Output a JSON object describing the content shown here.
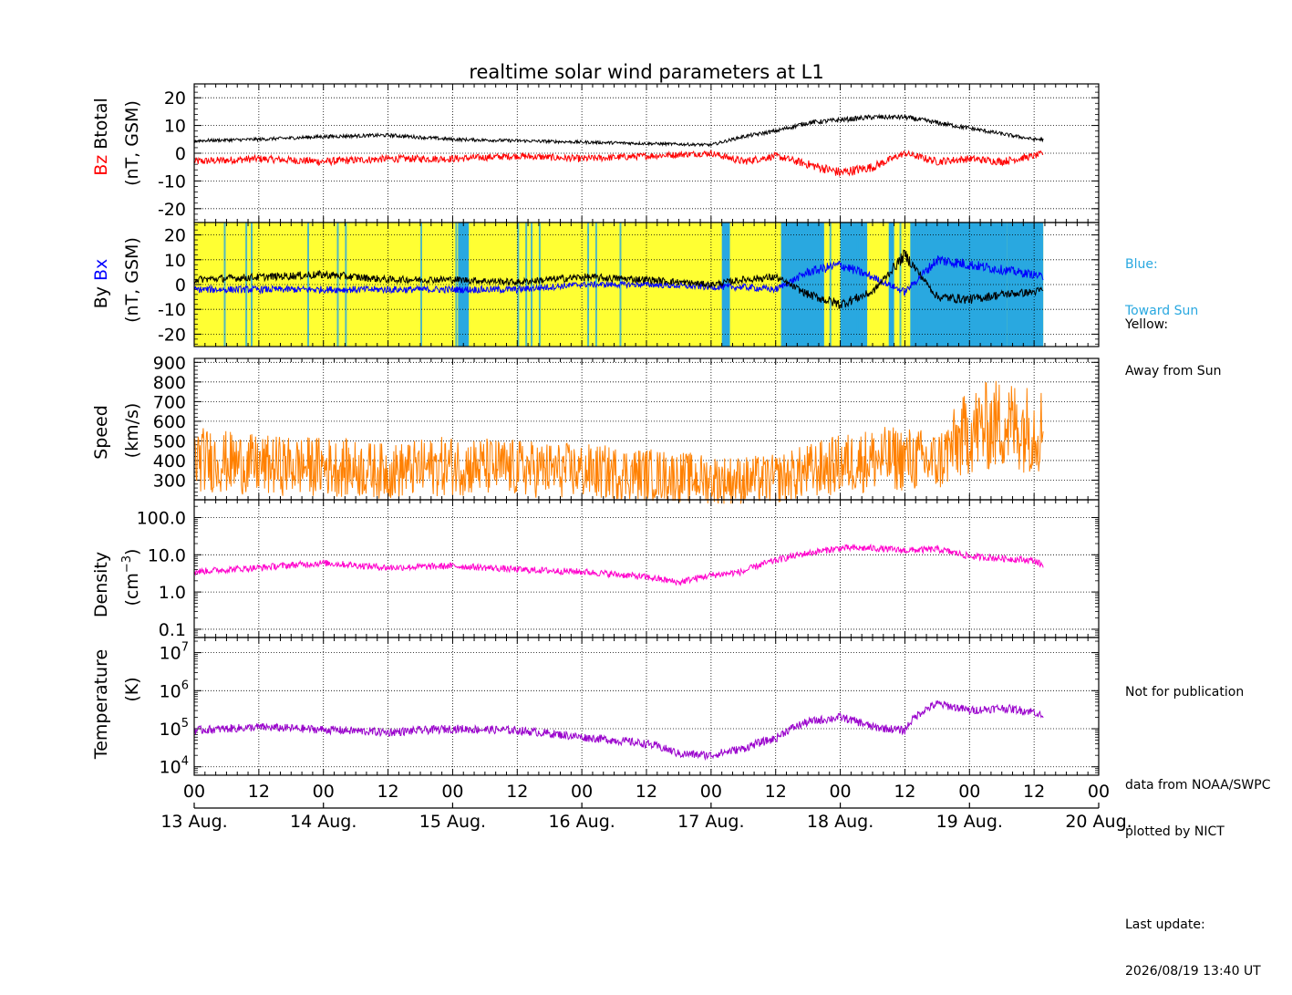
{
  "title": "realtime solar wind parameters at L1",
  "colors": {
    "bz": "#ff0000",
    "btotal": "#000000",
    "bx": "#0000ff",
    "by": "#000000",
    "toward_bg": "#29a8e0",
    "away_bg": "#ffff33",
    "speed": "#ff8000",
    "density": "#ff00cc",
    "temperature": "#9900cc"
  },
  "side_notes": {
    "blue_label": "Blue:",
    "blue_desc": "Toward Sun",
    "yellow_label": "Yellow:",
    "yellow_desc": "Away from Sun",
    "not_pub": "Not for publication",
    "data_from": "data from NOAA/SWPC",
    "plotted_by": "plotted by NICT",
    "last_update_label": "Last update:",
    "last_update": "2026/08/19 13:40 UT"
  },
  "x_axis": {
    "hour_ticks": [
      "00",
      "12",
      "00",
      "12",
      "00",
      "12",
      "00",
      "12",
      "00",
      "12",
      "00",
      "12",
      "00",
      "12",
      "00"
    ],
    "day_labels": [
      "13 Aug.",
      "14 Aug.",
      "15 Aug.",
      "16 Aug.",
      "17 Aug.",
      "18 Aug.",
      "19 Aug.",
      "20 Aug."
    ],
    "range_hours": [
      0,
      168
    ],
    "data_end_hours": 157.7
  },
  "chart_data": [
    {
      "type": "line",
      "panel": "magnetic field Btotal/Bz",
      "ylabel_parts": [
        "Bz",
        "Btotal",
        "(nT, GSM)"
      ],
      "ylim": [
        -25,
        25
      ],
      "yticks": [
        20,
        10,
        0,
        -10,
        -20
      ],
      "series": [
        {
          "name": "Btotal",
          "x_hours": [
            0,
            12,
            24,
            36,
            48,
            60,
            72,
            84,
            96,
            102,
            108,
            114,
            120,
            126,
            132,
            138,
            144,
            150,
            156,
            157.7
          ],
          "values": [
            4.5,
            5,
            6,
            6.5,
            5,
            4.5,
            4,
            3.5,
            3,
            6,
            8,
            11,
            12,
            13,
            13,
            11,
            9,
            7,
            5,
            5
          ]
        },
        {
          "name": "Bz",
          "x_hours": [
            0,
            12,
            24,
            36,
            48,
            60,
            72,
            84,
            96,
            102,
            108,
            114,
            120,
            126,
            132,
            138,
            144,
            150,
            156,
            157.7
          ],
          "values": [
            -3,
            -2,
            -3,
            -2,
            -2,
            -1,
            -2,
            -1,
            0,
            -3,
            -1,
            -4,
            -7,
            -5,
            0,
            -3,
            -2,
            -3,
            -1,
            0
          ]
        }
      ]
    },
    {
      "type": "line",
      "panel": "magnetic field Bx/By with sector polarity",
      "ylabel_parts": [
        "By",
        "Bx",
        "(nT, GSM)"
      ],
      "ylim": [
        -25,
        25
      ],
      "yticks": [
        20,
        10,
        0,
        -10,
        -20
      ],
      "toward_sun_intervals_hours": [
        [
          49,
          51
        ],
        [
          98,
          99.5
        ],
        [
          109,
          117
        ],
        [
          120,
          125
        ],
        [
          129,
          130
        ],
        [
          133,
          151
        ],
        [
          151,
          157.7
        ]
      ],
      "series": [
        {
          "name": "Bx",
          "x_hours": [
            0,
            12,
            24,
            36,
            48,
            60,
            72,
            84,
            96,
            102,
            108,
            114,
            120,
            126,
            132,
            138,
            144,
            150,
            156,
            157.7
          ],
          "values": [
            -2,
            -2,
            -2,
            -2,
            -2,
            -2,
            0,
            0,
            -1,
            -1,
            -2,
            5,
            8,
            3,
            -3,
            10,
            8,
            6,
            4,
            3
          ]
        },
        {
          "name": "By",
          "x_hours": [
            0,
            12,
            24,
            36,
            48,
            60,
            72,
            84,
            96,
            102,
            108,
            114,
            120,
            126,
            132,
            138,
            144,
            150,
            156,
            157.7
          ],
          "values": [
            2,
            3,
            4,
            2,
            2,
            1,
            3,
            2,
            0,
            2,
            3,
            -4,
            -8,
            -3,
            12,
            -5,
            -6,
            -4,
            -3,
            -2
          ]
        }
      ]
    },
    {
      "type": "line",
      "panel": "solar wind speed",
      "ylabel_parts": [
        "Speed",
        "(km/s)"
      ],
      "ylim": [
        200,
        920
      ],
      "yticks": [
        900,
        800,
        700,
        600,
        500,
        400,
        300
      ],
      "series": [
        {
          "name": "Speed",
          "x_hours": [
            0,
            12,
            24,
            36,
            48,
            60,
            72,
            84,
            96,
            102,
            108,
            114,
            120,
            126,
            132,
            138,
            144,
            150,
            156,
            157.7
          ],
          "values": [
            410,
            375,
            370,
            345,
            375,
            360,
            345,
            330,
            305,
            300,
            305,
            345,
            380,
            405,
            410,
            390,
            550,
            590,
            560,
            560
          ]
        }
      ]
    },
    {
      "type": "line",
      "panel": "proton density",
      "ylabel_parts": [
        "Density",
        "(cm",
        "−3",
        ")"
      ],
      "yscale": "log",
      "ylim": [
        0.06,
        300
      ],
      "ytick_values": [
        100,
        10,
        1,
        0.1
      ],
      "yticks": [
        "100.0",
        "10.0",
        "1.0",
        "0.1"
      ],
      "series": [
        {
          "name": "Density",
          "x_hours": [
            0,
            12,
            24,
            36,
            48,
            60,
            72,
            84,
            90,
            96,
            102,
            108,
            114,
            120,
            126,
            132,
            138,
            144,
            150,
            156,
            157.7
          ],
          "values": [
            3.5,
            4.5,
            6,
            4.5,
            5,
            4,
            3.5,
            2.5,
            1.8,
            2.8,
            3.5,
            7,
            11,
            15,
            15,
            13,
            14,
            9,
            8,
            7,
            5
          ]
        }
      ]
    },
    {
      "type": "line",
      "panel": "proton temperature",
      "ylabel_parts": [
        "Temperature",
        "(K)"
      ],
      "yscale": "log",
      "ylim": [
        6000,
        25000000
      ],
      "ytick_values": [
        10000000,
        1000000,
        100000,
        10000
      ],
      "yticks": [
        [
          "10",
          "7"
        ],
        [
          "10",
          "6"
        ],
        [
          "10",
          "5"
        ],
        [
          "10",
          "4"
        ]
      ],
      "series": [
        {
          "name": "Temperature",
          "x_hours": [
            0,
            12,
            24,
            36,
            48,
            60,
            72,
            84,
            90,
            96,
            102,
            108,
            114,
            120,
            126,
            132,
            138,
            144,
            150,
            156,
            157.7
          ],
          "values": [
            90000,
            110000,
            95000,
            80000,
            100000,
            90000,
            60000,
            40000,
            22000,
            20000,
            30000,
            55000,
            150000,
            200000,
            110000,
            90000,
            450000,
            300000,
            350000,
            280000,
            200000
          ]
        }
      ]
    }
  ]
}
